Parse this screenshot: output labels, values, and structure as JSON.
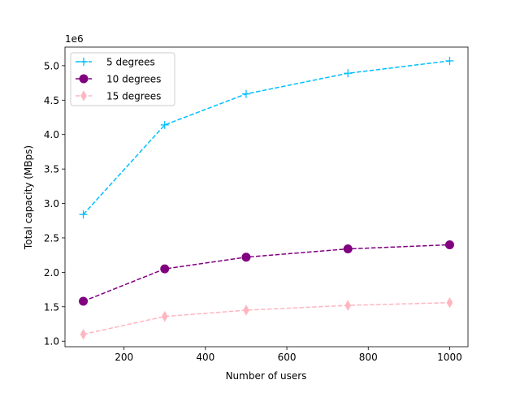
{
  "chart_data": {
    "type": "line",
    "title": "",
    "xlabel": "Number of users",
    "ylabel": "Total capacity (MBps)",
    "y_offset_label": "1e6",
    "xlim": [
      55,
      1045
    ],
    "ylim": [
      920000,
      5270000
    ],
    "x_ticks": [
      200,
      400,
      600,
      800,
      1000
    ],
    "x_tick_labels": [
      "200",
      "400",
      "600",
      "800",
      "1000"
    ],
    "y_ticks": [
      1000000,
      1500000,
      2000000,
      2500000,
      3000000,
      3500000,
      4000000,
      4500000,
      5000000
    ],
    "y_tick_labels": [
      "1.0",
      "1.5",
      "2.0",
      "2.5",
      "3.0",
      "3.5",
      "4.0",
      "4.5",
      "5.0"
    ],
    "grid": false,
    "legend_position": "upper-left",
    "x": [
      100,
      300,
      500,
      750,
      1000
    ],
    "series": [
      {
        "name": "5 degrees",
        "values": [
          2840000,
          4140000,
          4590000,
          4890000,
          5070000
        ],
        "color": "#00bfff",
        "marker": "plus",
        "linestyle": "dashed"
      },
      {
        "name": "10 degrees",
        "values": [
          1580000,
          2050000,
          2220000,
          2340000,
          2400000
        ],
        "color": "#800080",
        "marker": "circle",
        "linestyle": "dashed"
      },
      {
        "name": "15 degrees",
        "values": [
          1100000,
          1360000,
          1450000,
          1520000,
          1560000
        ],
        "color": "#ffb6c1",
        "marker": "thin-diamond",
        "linestyle": "dashed"
      }
    ]
  }
}
